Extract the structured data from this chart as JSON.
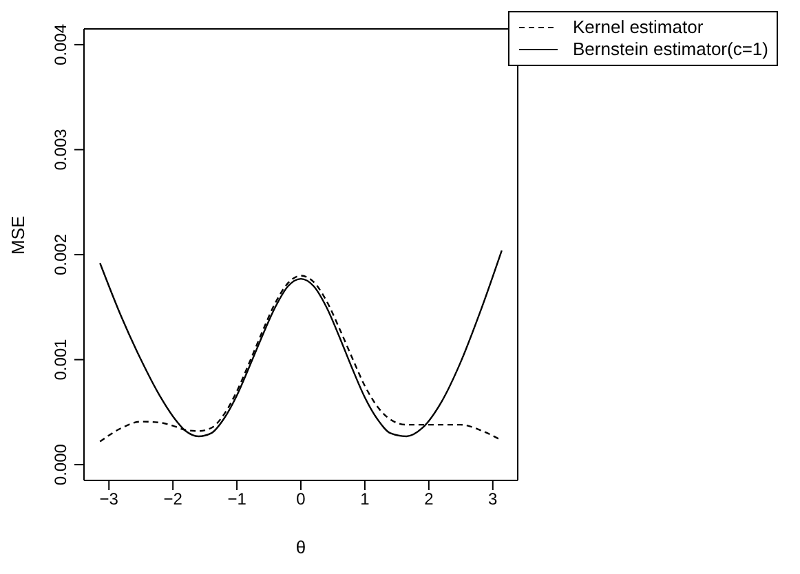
{
  "chart_data": {
    "type": "line",
    "xlabel": "θ",
    "ylabel": "MSE",
    "x": [
      -3.14,
      -2.8,
      -2.5,
      -2.2,
      -2.0,
      -1.8,
      -1.6,
      -1.4,
      -1.2,
      -1.0,
      -0.8,
      -0.6,
      -0.4,
      -0.2,
      0,
      0.2,
      0.4,
      0.6,
      0.8,
      1.0,
      1.2,
      1.4,
      1.65,
      1.9,
      2.2,
      2.5,
      2.8,
      3.14
    ],
    "series": [
      {
        "name": "Kernel estimator",
        "color": "#000000",
        "line_style": "dashed",
        "values": [
          0.00022,
          0.00035,
          0.00041,
          0.0004,
          0.00037,
          0.00033,
          0.00032,
          0.00035,
          0.00048,
          0.0007,
          0.00098,
          0.00127,
          0.00154,
          0.00173,
          0.0018,
          0.00174,
          0.00156,
          0.0013,
          0.00102,
          0.00075,
          0.00055,
          0.00043,
          0.00038,
          0.00038,
          0.00038,
          0.00038,
          0.00033,
          0.00023
        ]
      },
      {
        "name": "Bernstein estimator(c=1)",
        "color": "#000000",
        "line_style": "solid",
        "values": [
          0.00192,
          0.0014,
          0.001,
          0.00065,
          0.00046,
          0.00032,
          0.00027,
          0.0003,
          0.00044,
          0.00066,
          0.00094,
          0.00123,
          0.0015,
          0.0017,
          0.00177,
          0.0017,
          0.0015,
          0.00122,
          0.00092,
          0.00064,
          0.00043,
          0.0003,
          0.00027,
          0.00035,
          0.0006,
          0.00098,
          0.00145,
          0.00204
        ]
      }
    ],
    "xlim": [
      -3.39,
      3.39
    ],
    "xticks": [
      {
        "value": -3,
        "label": "−3"
      },
      {
        "value": -2,
        "label": "−2"
      },
      {
        "value": -1,
        "label": "−1"
      },
      0,
      1,
      2,
      3
    ],
    "ylim": [
      -0.00015,
      0.00415
    ],
    "yticks": [
      {
        "value": 0,
        "label": "0.000"
      },
      0.001,
      0.002,
      0.003,
      {
        "value": 0.004,
        "label": "0.004"
      }
    ],
    "legend": "top right",
    "grid": false,
    "marker": "none"
  }
}
